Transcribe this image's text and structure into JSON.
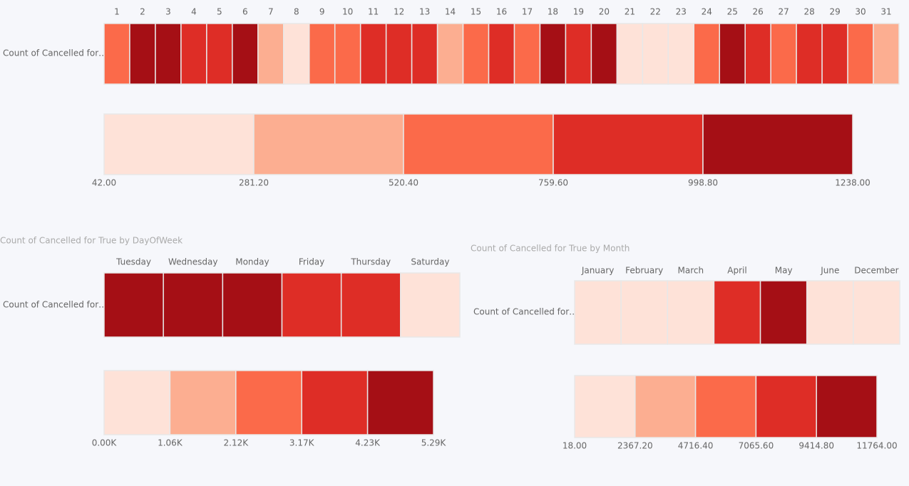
{
  "chart_data": [
    {
      "type": "heatmap",
      "row_label": "Count of Cancelled for…",
      "categories": [
        "1",
        "2",
        "3",
        "4",
        "5",
        "6",
        "7",
        "8",
        "9",
        "10",
        "11",
        "12",
        "13",
        "14",
        "15",
        "16",
        "17",
        "18",
        "19",
        "20",
        "21",
        "22",
        "23",
        "24",
        "25",
        "26",
        "27",
        "28",
        "29",
        "30",
        "31"
      ],
      "values": [
        650,
        1238,
        1150,
        880,
        900,
        1120,
        400,
        42,
        640,
        660,
        870,
        890,
        900,
        390,
        620,
        880,
        650,
        1180,
        860,
        1100,
        150,
        160,
        140,
        630,
        1200,
        880,
        660,
        890,
        870,
        640,
        420
      ],
      "colors": [
        "#fee2d8",
        "#fcae91",
        "#fb6a4a",
        "#de2d26",
        "#a50f15"
      ],
      "legend_ticks": [
        {
          "value": 42,
          "label": "42.00"
        },
        {
          "value": 281.2,
          "label": "281.20"
        },
        {
          "value": 520.4,
          "label": "520.40"
        },
        {
          "value": 759.6,
          "label": "759.60"
        },
        {
          "value": 998.8,
          "label": "998.80"
        },
        {
          "value": 1238,
          "label": "1238.00"
        }
      ]
    },
    {
      "type": "heatmap",
      "title": "Count of Cancelled for True by DayOfWeek",
      "row_label": "Count of Cancelled for…",
      "categories": [
        "Tuesday",
        "Wednesday",
        "Monday",
        "Friday",
        "Thursday",
        "Saturday"
      ],
      "values": [
        5290,
        5100,
        4900,
        3900,
        3700,
        420
      ],
      "colors": [
        "#fee2d8",
        "#fcae91",
        "#fb6a4a",
        "#de2d26",
        "#a50f15"
      ],
      "legend_ticks": [
        {
          "value": 0,
          "label": "0.00K"
        },
        {
          "value": 1058,
          "label": "1.06K"
        },
        {
          "value": 2116,
          "label": "2.12K"
        },
        {
          "value": 3174,
          "label": "3.17K"
        },
        {
          "value": 4232,
          "label": "4.23K"
        },
        {
          "value": 5290,
          "label": "5.29K"
        }
      ]
    },
    {
      "type": "heatmap",
      "title": "Count of Cancelled for True by Month",
      "row_label": "Count of Cancelled for…",
      "categories": [
        "January",
        "February",
        "March",
        "April",
        "May",
        "June",
        "December"
      ],
      "values": [
        1500,
        1200,
        900,
        8200,
        11764,
        400,
        18
      ],
      "colors": [
        "#fee2d8",
        "#fcae91",
        "#fb6a4a",
        "#de2d26",
        "#a50f15"
      ],
      "legend_ticks": [
        {
          "value": 18,
          "label": "18.00"
        },
        {
          "value": 2367.2,
          "label": "2367.20"
        },
        {
          "value": 4716.4,
          "label": "4716.40"
        },
        {
          "value": 7065.6,
          "label": "7065.60"
        },
        {
          "value": 9414.8,
          "label": "9414.80"
        },
        {
          "value": 11764,
          "label": "11764.00"
        }
      ]
    }
  ]
}
